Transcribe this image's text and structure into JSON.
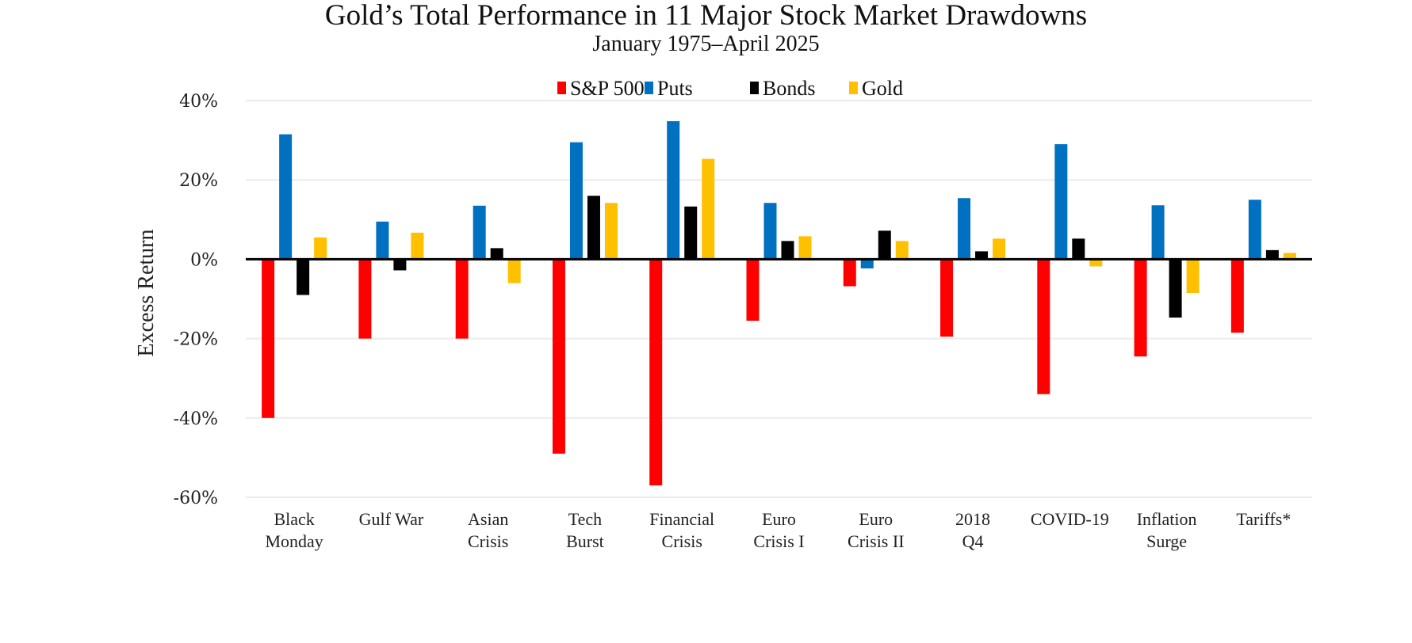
{
  "chart_data": {
    "type": "bar",
    "title": "Gold’s Total Performance in 11 Major Stock Market Drawdowns",
    "subtitle": "January 1975–April 2025",
    "xlabel": "",
    "ylabel": "Excess Return",
    "ylim": [
      -60,
      40
    ],
    "yticks": [
      40,
      20,
      0,
      -20,
      -40,
      -60
    ],
    "ytick_labels": [
      "40%",
      "20%",
      "0%",
      "-20%",
      "-40%",
      "-60%"
    ],
    "grid": true,
    "legend_position": "top-center",
    "categories": [
      [
        "Black",
        "Monday"
      ],
      [
        "Gulf War"
      ],
      [
        "Asian",
        "Crisis"
      ],
      [
        "Tech",
        "Burst"
      ],
      [
        "Financial",
        "Crisis"
      ],
      [
        "Euro",
        "Crisis I"
      ],
      [
        "Euro",
        "Crisis II"
      ],
      [
        "2018",
        "Q4"
      ],
      [
        "COVID-19"
      ],
      [
        "Inflation",
        "Surge"
      ],
      [
        "Tariffs*"
      ]
    ],
    "series": [
      {
        "name": "S&P 500",
        "color": "#ff0000",
        "values": [
          -40,
          -20,
          -20,
          -49,
          -57,
          -15.5,
          -6.8,
          -19.5,
          -34,
          -24.5,
          -18.5
        ]
      },
      {
        "name": "Puts",
        "color": "#0070c0",
        "values": [
          31.5,
          9.5,
          13.5,
          29.5,
          34.8,
          14.2,
          -2.3,
          15.4,
          29,
          13.6,
          15
        ]
      },
      {
        "name": "Bonds",
        "color": "#000000",
        "values": [
          -9,
          -2.8,
          2.8,
          16,
          13.3,
          4.6,
          7.2,
          2,
          5.2,
          -14.7,
          2.3
        ]
      },
      {
        "name": "Gold",
        "color": "#ffc000",
        "values": [
          5.5,
          6.7,
          -6,
          14.2,
          25.3,
          5.8,
          4.6,
          5.2,
          -1.8,
          -8.5,
          1.6
        ]
      }
    ]
  }
}
